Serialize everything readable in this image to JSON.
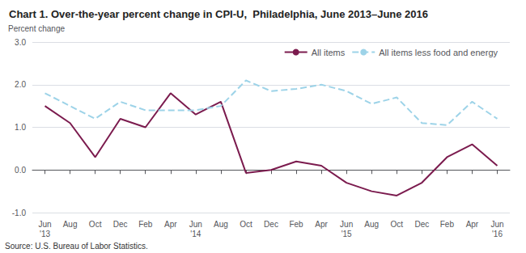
{
  "chart_data": {
    "type": "line",
    "title": "Chart 1. Over-the-year percent change in CPI-U,  Philadelphia, June 2013–June 2016",
    "ylabel": "Percent change",
    "annotations": [
      "Source: U.S. Bureau of Labor Statistics."
    ],
    "categories": [
      "Jun\n'13",
      "Aug",
      "Oct",
      "Dec",
      "Feb",
      "Apr",
      "Jun\n'14",
      "Aug",
      "Oct",
      "Dec",
      "Feb",
      "Apr",
      "Jun\n'15",
      "Aug",
      "Oct",
      "Dec",
      "Feb",
      "Apr",
      "Jun\n'16"
    ],
    "series": [
      {
        "name": "All items",
        "color": "#7B1B4E",
        "line_style": "solid",
        "values": [
          1.5,
          1.1,
          0.3,
          1.2,
          1.0,
          1.8,
          1.3,
          1.6,
          -0.07,
          0.0,
          0.2,
          0.1,
          -0.3,
          -0.5,
          -0.6,
          -0.3,
          0.3,
          0.6,
          0.1
        ]
      },
      {
        "name": "All items less food and energy",
        "color": "#9DD3E8",
        "line_style": "dashed",
        "values": [
          1.8,
          1.5,
          1.2,
          1.6,
          1.4,
          1.4,
          1.4,
          1.5,
          2.1,
          1.85,
          1.9,
          2.0,
          1.85,
          1.55,
          1.7,
          1.1,
          1.05,
          1.6,
          1.2
        ]
      }
    ],
    "ylim": [
      -1.0,
      3.0
    ],
    "yticks": [
      {
        "value": -1.0,
        "label": "-1.0"
      },
      {
        "value": 0.0,
        "label": "0.0"
      },
      {
        "value": 1.0,
        "label": "1.0"
      },
      {
        "value": 2.0,
        "label": "2.0"
      },
      {
        "value": 3.0,
        "label": "3.0"
      }
    ],
    "grid": true,
    "legend": "upper right"
  }
}
